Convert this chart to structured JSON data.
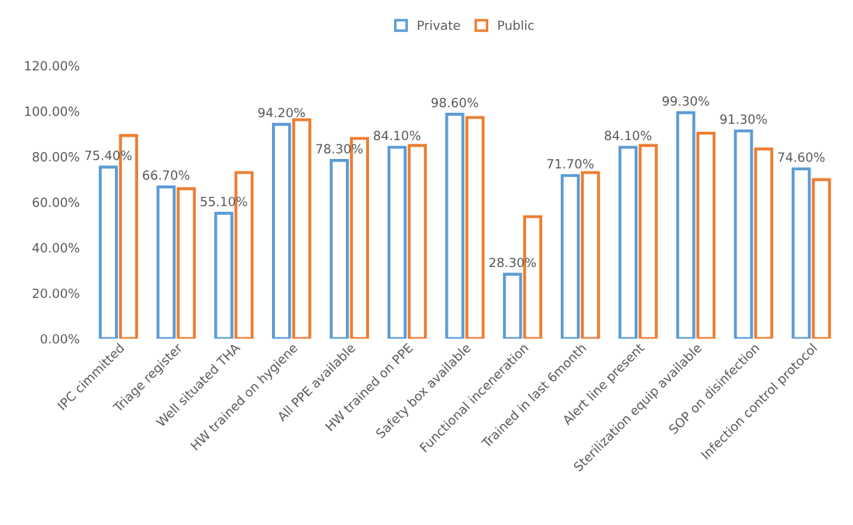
{
  "chart_data": {
    "type": "bar",
    "categories": [
      "IPC cimmitted",
      "Triage register",
      "Well situated THA",
      "HW trained on hygiene",
      "All PPE available",
      "HW trained on PPE",
      "Safety box available",
      "Functional inceneration",
      "Trained in last 6month",
      "Alert line present",
      "Sterilization equip available",
      "SOP on disinfection",
      "Infection control protocol"
    ],
    "series": [
      {
        "name": "Private",
        "color": "#5b9bd5",
        "values": [
          75.4,
          66.7,
          55.1,
          94.2,
          78.3,
          84.1,
          98.6,
          28.3,
          71.7,
          84.1,
          99.3,
          91.3,
          74.6
        ],
        "value_labels": [
          "75.40%",
          "66.70%",
          "55.10%",
          "94.20%",
          "78.30%",
          "84.10%",
          "98.60%",
          "28.30%",
          "71.70%",
          "84.10%",
          "99.30%",
          "91.30%",
          "74.60%"
        ]
      },
      {
        "name": "Public",
        "color": "#ed7d31",
        "values": [
          89.3,
          65.9,
          73.0,
          96.2,
          88.0,
          84.9,
          97.2,
          53.6,
          73.0,
          84.9,
          90.3,
          83.4,
          69.9
        ]
      }
    ],
    "ylim": [
      0,
      120
    ],
    "yticks": [
      {
        "value": 0,
        "label": "0.00%"
      },
      {
        "value": 20,
        "label": "20.00%"
      },
      {
        "value": 40,
        "label": "40.00%"
      },
      {
        "value": 60,
        "label": "60.00%"
      },
      {
        "value": 80,
        "label": "80.00%"
      },
      {
        "value": 100,
        "label": "100.00%"
      },
      {
        "value": 120,
        "label": "120.00%"
      }
    ],
    "legend": "top",
    "grid": false
  }
}
